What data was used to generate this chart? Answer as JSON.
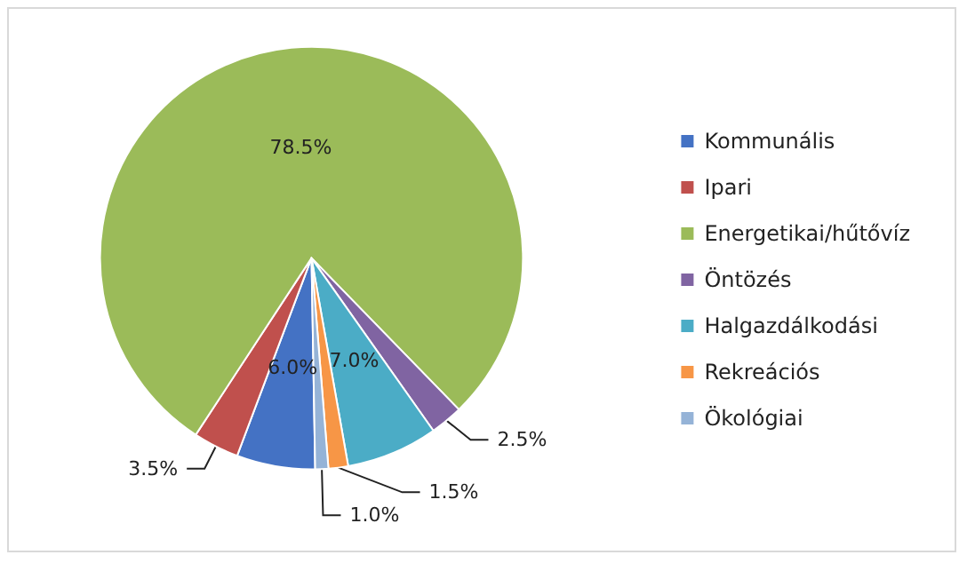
{
  "chart_data": {
    "type": "pie",
    "categories": [
      "Kommunális",
      "Ipari",
      "Energetikai/hűtővíz",
      "Öntözés",
      "Halgazdálkodási",
      "Rekreációs",
      "Ökológiai"
    ],
    "values": [
      6.0,
      3.5,
      78.5,
      2.5,
      7.0,
      1.5,
      1.0
    ],
    "colors": [
      "#4472c4",
      "#c0504d",
      "#9bbb59",
      "#8064a2",
      "#4bacc6",
      "#f79646",
      "#95b3d7"
    ],
    "value_labels": [
      "6.0%",
      "3.5%",
      "78.5%",
      "2.5%",
      "7.0%",
      "1.5%",
      "1.0%"
    ],
    "legend": "right"
  }
}
